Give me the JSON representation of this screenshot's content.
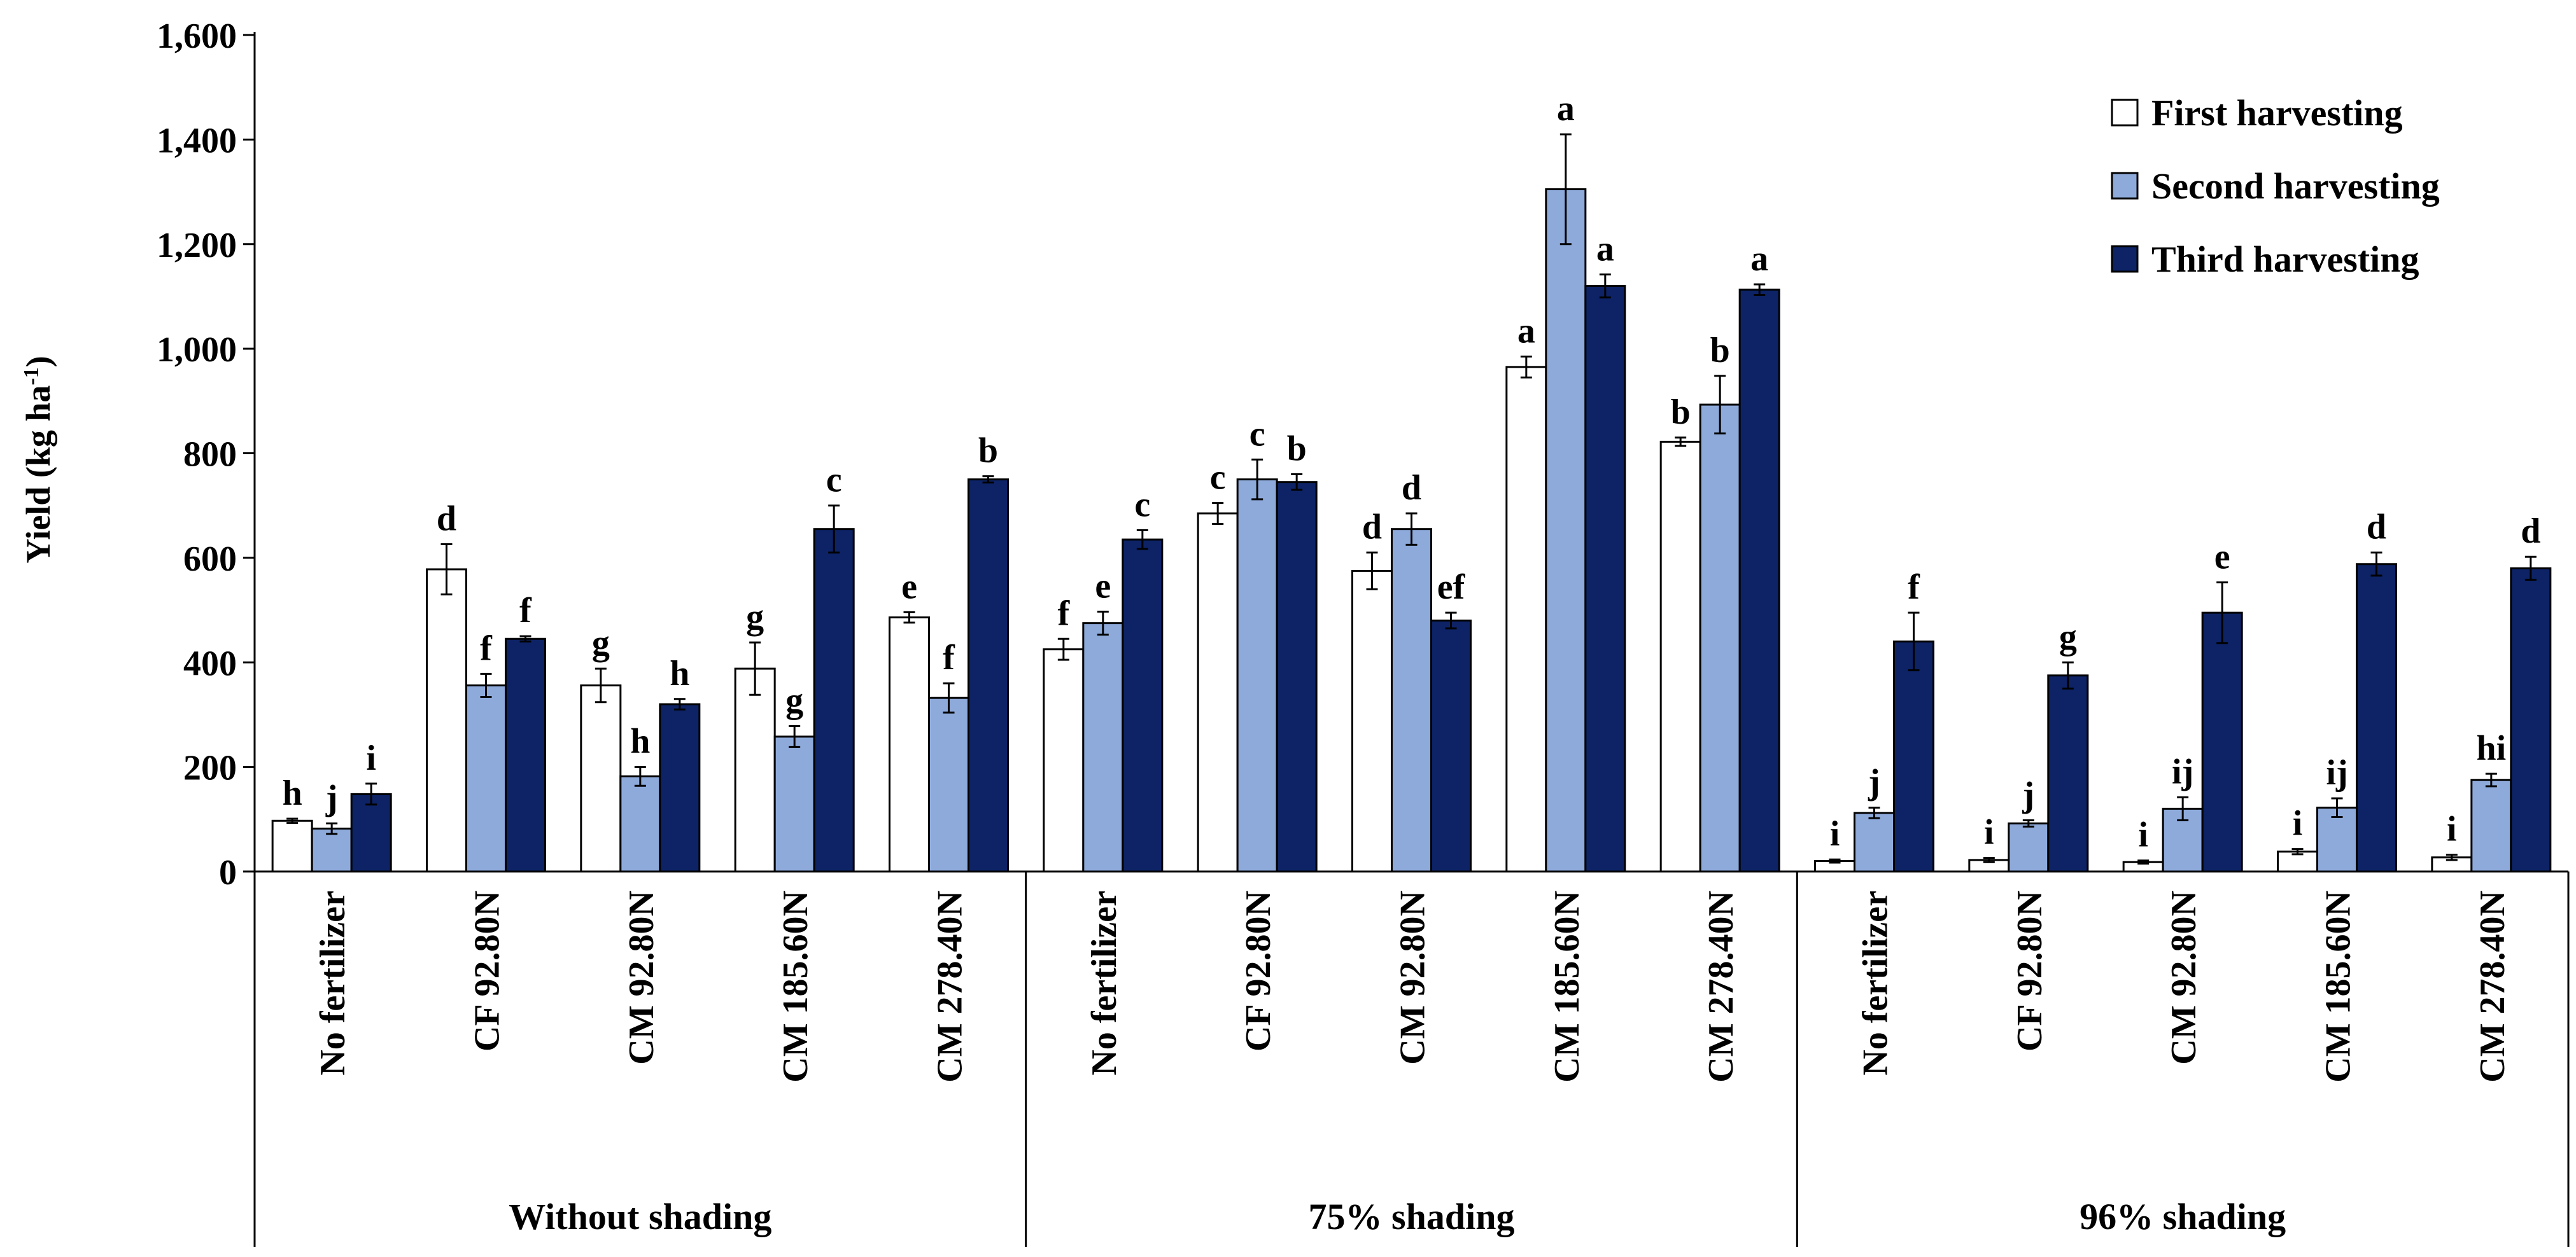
{
  "chart_data": {
    "type": "bar",
    "ylabel": "Yield (kg ha",
    "ylabel_sup": "-1",
    "ylabel_close": ")",
    "ylim": [
      0,
      1600
    ],
    "yticks": [
      "0",
      "200",
      "400",
      "600",
      "800",
      "1,000",
      "1,200",
      "1,400",
      "1,600"
    ],
    "grid": false,
    "legend_position": "top-right",
    "series": [
      {
        "name": "First harvesting",
        "color": "#ffffff"
      },
      {
        "name": "Second harvesting",
        "color": "#8eaadb"
      },
      {
        "name": "Third harvesting",
        "color": "#0d2366"
      }
    ],
    "groups": [
      {
        "name": "Without shading",
        "categories": [
          {
            "label": "No fertilizer",
            "values": [
              97,
              82,
              148
            ],
            "errors": [
              4,
              10,
              20
            ],
            "letters": [
              "h",
              "j",
              "i"
            ]
          },
          {
            "label": "CF 92.80N",
            "values": [
              578,
              356,
              445
            ],
            "errors": [
              48,
              22,
              5
            ],
            "letters": [
              "d",
              "f",
              "f"
            ]
          },
          {
            "label": "CM 92.80N",
            "values": [
              356,
              182,
              320
            ],
            "errors": [
              32,
              18,
              10
            ],
            "letters": [
              "g",
              "h",
              "h"
            ]
          },
          {
            "label": "CM 185.60N",
            "values": [
              388,
              258,
              655
            ],
            "errors": [
              50,
              20,
              45
            ],
            "letters": [
              "g",
              "g",
              "c"
            ]
          },
          {
            "label": "CM 278.40N",
            "values": [
              486,
              332,
              750
            ],
            "errors": [
              10,
              28,
              6
            ],
            "letters": [
              "e",
              "f",
              "b"
            ]
          }
        ]
      },
      {
        "name": "75% shading",
        "categories": [
          {
            "label": "No fertilizer",
            "values": [
              425,
              475,
              635
            ],
            "errors": [
              20,
              22,
              18
            ],
            "letters": [
              "f",
              "e",
              "c"
            ]
          },
          {
            "label": "CF 92.80N",
            "values": [
              685,
              750,
              745
            ],
            "errors": [
              20,
              38,
              15
            ],
            "letters": [
              "c",
              "c",
              "b"
            ]
          },
          {
            "label": "CM 92.80N",
            "values": [
              575,
              655,
              480
            ],
            "errors": [
              35,
              30,
              15
            ],
            "letters": [
              "d",
              "d",
              "ef"
            ]
          },
          {
            "label": "CM 185.60N",
            "values": [
              965,
              1305,
              1120
            ],
            "errors": [
              20,
              105,
              22
            ],
            "letters": [
              "a",
              "a",
              "a"
            ]
          },
          {
            "label": "CM 278.40N",
            "values": [
              822,
              893,
              1113
            ],
            "errors": [
              8,
              55,
              10
            ],
            "letters": [
              "b",
              "b",
              "a"
            ]
          }
        ]
      },
      {
        "name": "96% shading",
        "categories": [
          {
            "label": "No fertilizer",
            "values": [
              20,
              112,
              440
            ],
            "errors": [
              3,
              10,
              55
            ],
            "letters": [
              "i",
              "j",
              "f"
            ]
          },
          {
            "label": "CF 92.80N",
            "values": [
              22,
              92,
              375
            ],
            "errors": [
              4,
              6,
              25
            ],
            "letters": [
              "i",
              "j",
              "g"
            ]
          },
          {
            "label": "CM 92.80N",
            "values": [
              18,
              120,
              495
            ],
            "errors": [
              3,
              22,
              58
            ],
            "letters": [
              "i",
              "ij",
              "e"
            ]
          },
          {
            "label": "CM 185.60N",
            "values": [
              38,
              122,
              588
            ],
            "errors": [
              5,
              18,
              22
            ],
            "letters": [
              "i",
              "ij",
              "d"
            ]
          },
          {
            "label": "CM 278.40N",
            "values": [
              27,
              175,
              580
            ],
            "errors": [
              5,
              12,
              22
            ],
            "letters": [
              "i",
              "hi",
              "d"
            ]
          }
        ]
      }
    ]
  }
}
